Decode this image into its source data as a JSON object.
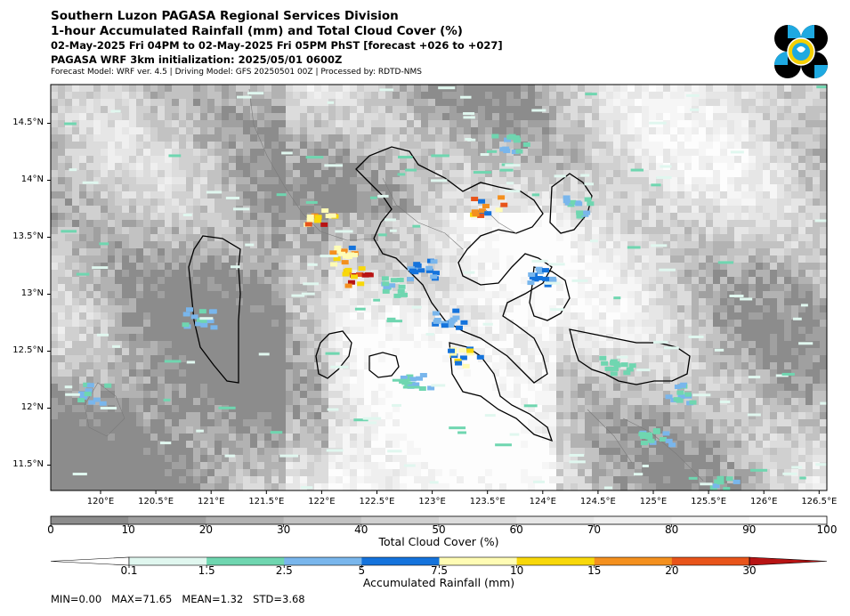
{
  "header": {
    "line1": "Southern Luzon PAGASA Regional Services Division",
    "line2": "1-hour Accumulated Rainfall (mm) and Total Cloud Cover (%)",
    "line3": "02-May-2025 Fri 04PM to 02-May-2025 Fri 05PM PhST [forecast +026 to +027]",
    "line4": "PAGASA WRF 3km initialization: 2025/05/01 0600Z",
    "line5": "Forecast Model: WRF ver. 4.5 | Driving Model: GFS 20250501 00Z | Processed by: RDTD-NMS"
  },
  "logo": {
    "icon": "pagasa-logo-icon",
    "colors": [
      "#000000",
      "#1ea9e1",
      "#f5d000"
    ]
  },
  "map": {
    "lat_labels": [
      "14.5°N",
      "14°N",
      "13.5°N",
      "13°N",
      "12.5°N",
      "12°N",
      "11.5°N"
    ],
    "lon_labels": [
      "120°E",
      "120.5°E",
      "121°E",
      "121.5°E",
      "122°E",
      "122.5°E",
      "123°E",
      "123.5°E",
      "124°E",
      "124.5°E",
      "125°E",
      "125.5°E",
      "126°E",
      "126.5°E"
    ]
  },
  "cloud_colorbar": {
    "ticks": [
      "0",
      "10",
      "20",
      "30",
      "40",
      "50",
      "60",
      "70",
      "80",
      "90",
      "100"
    ],
    "colors": [
      "#8c8c8c",
      "#a0a0a0",
      "#b2b2b2",
      "#c2c2c2",
      "#d0d0d0",
      "#dcdcdc",
      "#e6e6e6",
      "#efefef",
      "#f6f6f6",
      "#fdfdfd"
    ],
    "label": "Total Cloud Cover (%)"
  },
  "rain_colorbar": {
    "ticks": [
      "0.1",
      "1.5",
      "2.5",
      "5",
      "7.5",
      "10",
      "15",
      "20",
      "30"
    ],
    "colors": [
      "#e0f7ef",
      "#6fd6b0",
      "#79b6ec",
      "#1473dc",
      "#fffcb4",
      "#f8d80a",
      "#f4901e",
      "#e8541a",
      "#b81414"
    ],
    "label": "Accumulated Rainfall (mm)"
  },
  "stats": "MIN=0.00   MAX=71.65   MEAN=1.32   STD=3.68"
}
